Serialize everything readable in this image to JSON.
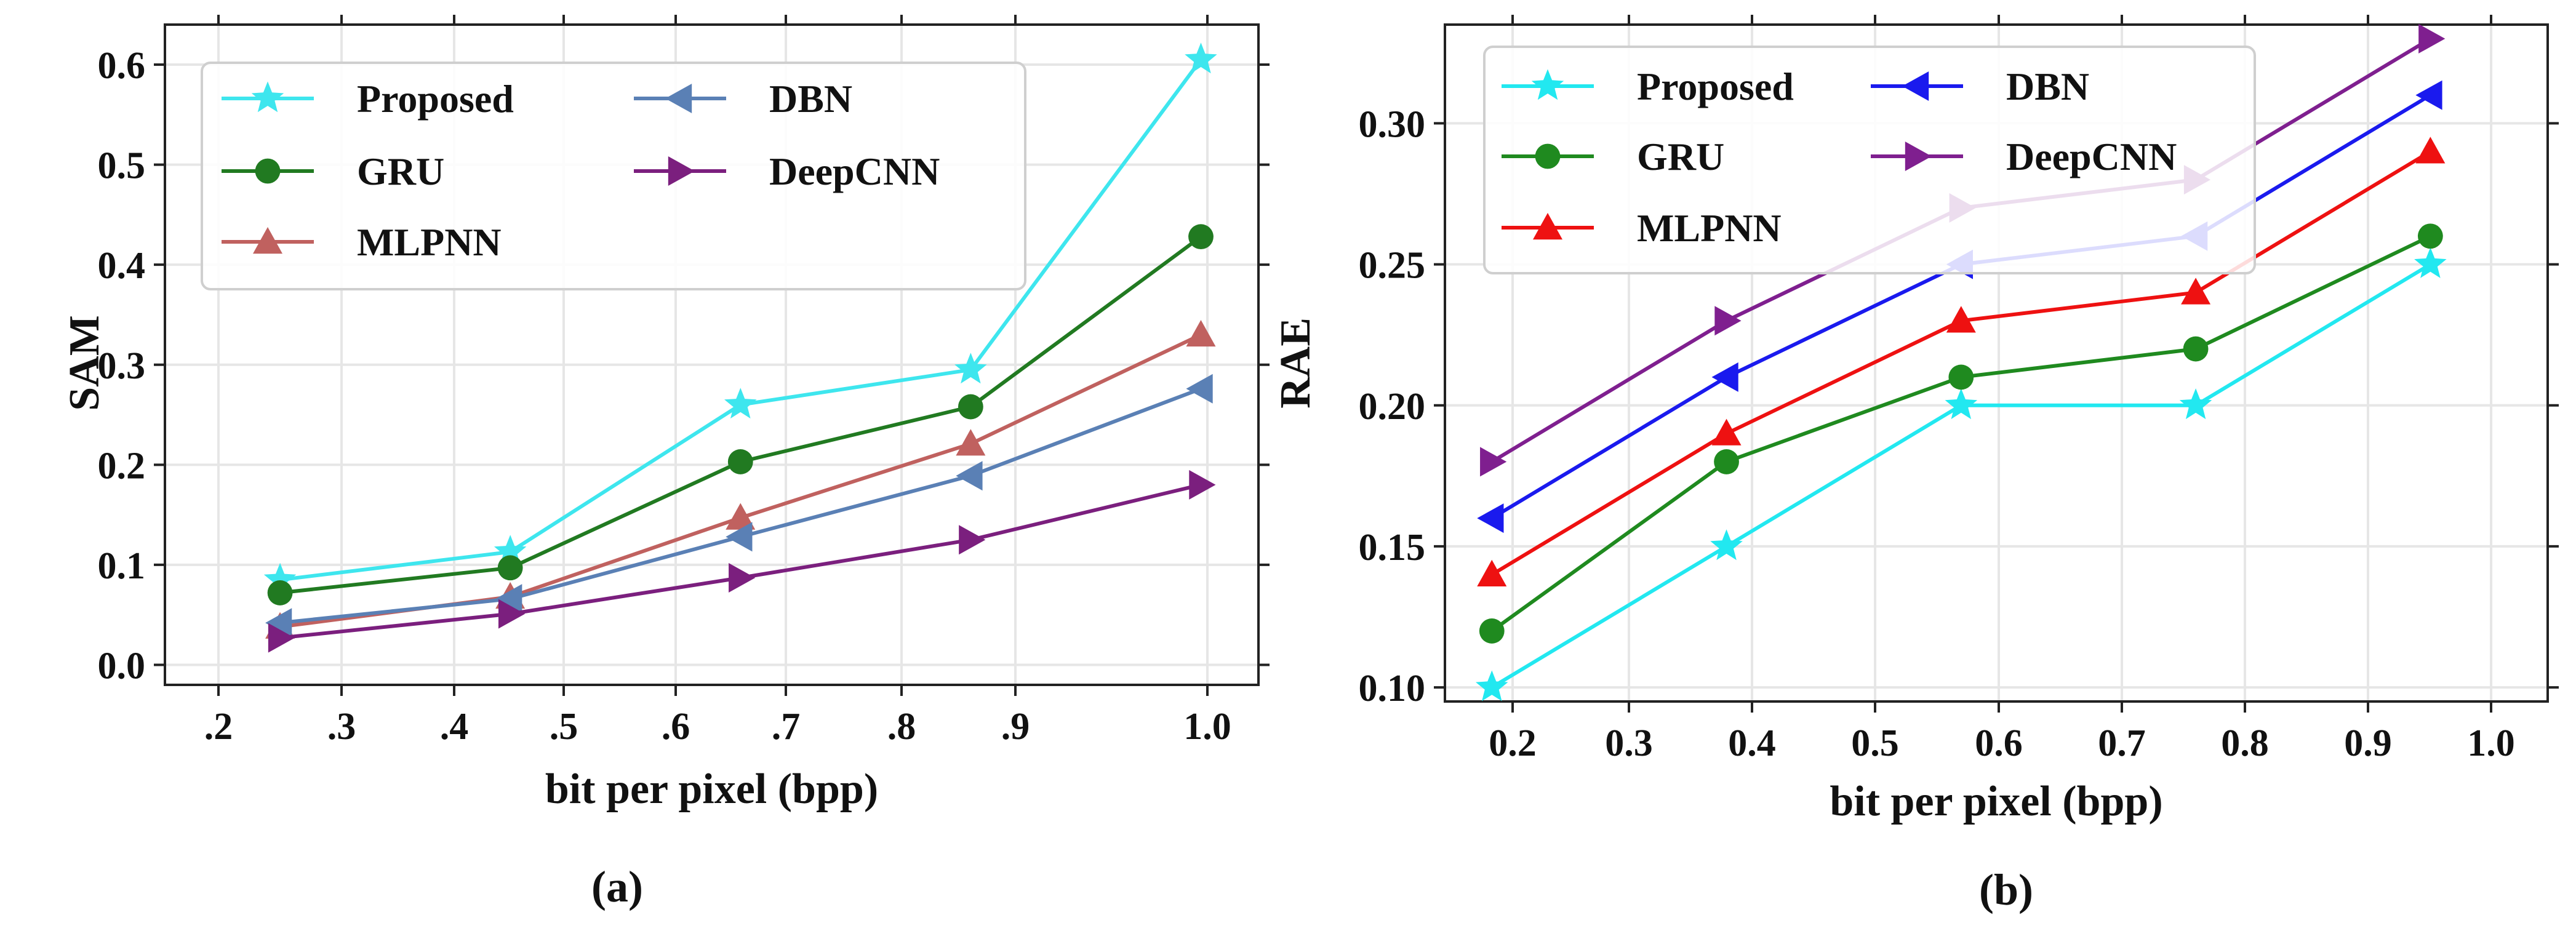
{
  "chart_data": [
    {
      "type": "line",
      "panel_caption": "(a)",
      "xlabel": "bit per pixel (bpp)",
      "ylabel": "SAM",
      "x": [
        0.2,
        0.4,
        0.6,
        0.8,
        1.0
      ],
      "xlim": [
        0.1,
        1.05
      ],
      "ylim": [
        -0.02,
        0.64
      ],
      "xtick_labels": [
        ".2",
        ".3",
        ".4",
        ".5",
        ".6",
        ".7",
        ".8",
        ".9",
        "1.0"
      ],
      "ytick_labels": [
        "0.0",
        "0.1",
        "0.2",
        "0.3",
        "0.4",
        "0.5",
        "0.6"
      ],
      "yticks": [
        0.0,
        0.1,
        0.2,
        0.3,
        0.4,
        0.5,
        0.6
      ],
      "grid": true,
      "legend_position": "top-left",
      "legend_columns": 2,
      "series": [
        {
          "name": "Proposed",
          "marker": "star",
          "color": "#3ee6ee",
          "values": [
            0.085,
            0.113,
            0.26,
            0.295,
            0.605
          ]
        },
        {
          "name": "GRU",
          "marker": "circle",
          "color": "#217a21",
          "values": [
            0.072,
            0.097,
            0.203,
            0.258,
            0.428
          ]
        },
        {
          "name": "MLPNN",
          "marker": "triangle-up",
          "color": "#c0615f",
          "values": [
            0.038,
            0.068,
            0.147,
            0.221,
            0.33
          ]
        },
        {
          "name": "DBN",
          "marker": "triangle-left",
          "color": "#5a80b5",
          "values": [
            0.042,
            0.066,
            0.128,
            0.189,
            0.276
          ]
        },
        {
          "name": "DeepCNN",
          "marker": "triangle-right",
          "color": "#7b1f7e",
          "values": [
            0.027,
            0.051,
            0.087,
            0.125,
            0.18
          ]
        }
      ]
    },
    {
      "type": "line",
      "panel_caption": "(b)",
      "xlabel": "bit per pixel (bpp)",
      "ylabel": "RAE",
      "x": [
        0.2,
        0.4,
        0.6,
        0.8,
        1.0
      ],
      "xlim": [
        0.16,
        1.1
      ],
      "ylim": [
        0.095,
        0.335
      ],
      "xtick_labels": [
        "0.2",
        "0.3",
        "0.4",
        "0.5",
        "0.6",
        "0.7",
        "0.8",
        "0.9",
        "1.0"
      ],
      "ytick_labels": [
        "0.10",
        "0.15",
        "0.20",
        "0.25",
        "0.30"
      ],
      "yticks": [
        0.1,
        0.15,
        0.2,
        0.25,
        0.3
      ],
      "grid": true,
      "legend_position": "top-left",
      "legend_columns": 2,
      "series": [
        {
          "name": "Proposed",
          "marker": "star",
          "color": "#22e8f0",
          "values": [
            0.1,
            0.15,
            0.2,
            0.2,
            0.25
          ]
        },
        {
          "name": "GRU",
          "marker": "circle",
          "color": "#1f8a1f",
          "values": [
            0.12,
            0.18,
            0.21,
            0.22,
            0.26
          ]
        },
        {
          "name": "MLPNN",
          "marker": "triangle-up",
          "color": "#ee1111",
          "values": [
            0.14,
            0.19,
            0.23,
            0.24,
            0.29
          ]
        },
        {
          "name": "DBN",
          "marker": "triangle-left",
          "color": "#1a1aee",
          "values": [
            0.16,
            0.21,
            0.25,
            0.26,
            0.31
          ]
        },
        {
          "name": "DeepCNN",
          "marker": "triangle-right",
          "color": "#7f1f8f",
          "values": [
            0.18,
            0.23,
            0.27,
            0.28,
            0.33
          ]
        }
      ]
    }
  ]
}
